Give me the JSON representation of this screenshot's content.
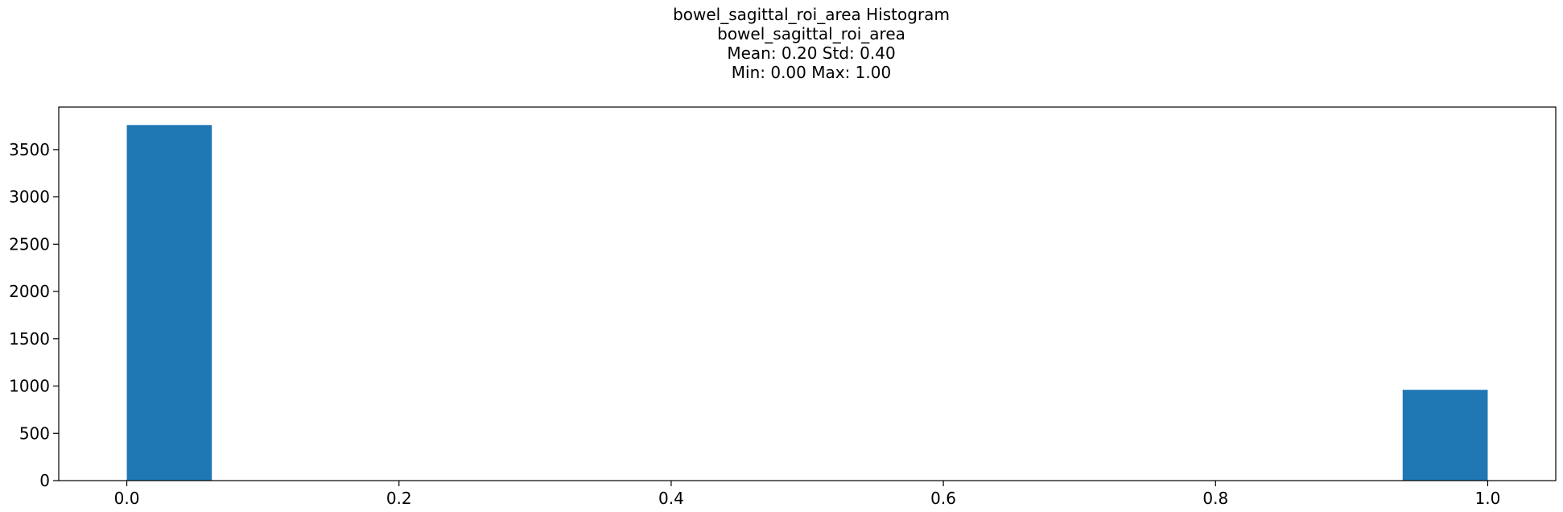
{
  "titles": [
    "bowel_sagittal_roi_area Histogram",
    "bowel_sagittal_roi_area",
    "Mean: 0.20 Std: 0.40",
    "Min: 0.00 Max: 1.00"
  ],
  "chart_data": {
    "type": "bar",
    "title": "bowel_sagittal_roi_area Histogram\nbowel_sagittal_roi_area\nMean: 0.20 Std: 0.40\nMin: 0.00 Max: 1.00",
    "xlabel": "",
    "ylabel": "",
    "bins": [
      {
        "x0": 0.0,
        "x1": 0.0625,
        "value": 3760
      },
      {
        "x0": 0.9375,
        "x1": 1.0,
        "value": 960
      }
    ],
    "xlim": [
      -0.05,
      1.05
    ],
    "ylim": [
      0,
      3950
    ],
    "xticks": [
      0.0,
      0.2,
      0.4,
      0.6,
      0.8,
      1.0
    ],
    "xtick_labels": [
      "0.0",
      "0.2",
      "0.4",
      "0.6",
      "0.8",
      "1.0"
    ],
    "yticks": [
      0,
      500,
      1000,
      1500,
      2000,
      2500,
      3000,
      3500
    ],
    "ytick_labels": [
      "0",
      "500",
      "1000",
      "1500",
      "2000",
      "2500",
      "3000",
      "3500"
    ],
    "grid": false,
    "legend": "none",
    "bar_color": "#1f77b4"
  }
}
